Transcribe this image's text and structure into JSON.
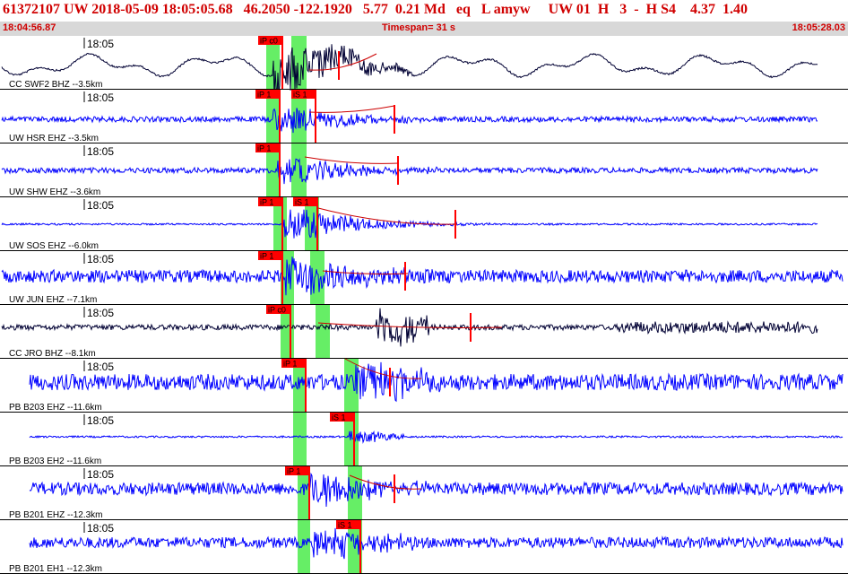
{
  "header": {
    "line1": "61372107 UW 2018-05-09 18:05:05.68   46.2050 -122.1920   5.77  0.21 Md   eq   L amyw     UW 01  H   3  -  H S4    4.37  1.40",
    "start_time": "18:04:56.87",
    "timespan": "Timespan=  31 s",
    "end_time": "18:05:28.03"
  },
  "colors": {
    "trace_blue": "#0000ff",
    "trace_dark": "#000033",
    "pick_box": "#ff0000",
    "pick_window": "#66ee66",
    "predicted_curve": "#cc0000",
    "header_text": "#d00000"
  },
  "channels": [
    {
      "label": "CC SWF2 BHZ --3.5km",
      "time_label": "18:05",
      "color": "#000033",
      "picks": [
        {
          "label": "iP c0"
        }
      ]
    },
    {
      "label": "UW HSR EHZ --3.5km",
      "time_label": "18:05",
      "color": "#0000ff",
      "picks": [
        {
          "label": "iP 1"
        },
        {
          "label": "iS 1"
        }
      ]
    },
    {
      "label": "UW SHW EHZ --3.6km",
      "time_label": "18:05",
      "color": "#0000ff",
      "picks": [
        {
          "label": "iP 1"
        }
      ]
    },
    {
      "label": "UW SOS EHZ --6.0km",
      "time_label": "18:05",
      "color": "#0000ff",
      "picks": [
        {
          "label": "iP 1"
        },
        {
          "label": "iS 1"
        }
      ]
    },
    {
      "label": "UW JUN EHZ --7.1km",
      "time_label": "18:05",
      "color": "#0000ff",
      "picks": [
        {
          "label": "iP 1"
        }
      ]
    },
    {
      "label": "CC JRO BHZ --8.1km",
      "time_label": "18:05",
      "color": "#000033",
      "picks": [
        {
          "label": "iP c0"
        }
      ]
    },
    {
      "label": "PB B203 EHZ --11.6km",
      "time_label": "18:05",
      "color": "#0000ff",
      "picks": [
        {
          "label": "iP 1"
        }
      ]
    },
    {
      "label": "PB B203 EH2 --11.6km",
      "time_label": "18:05",
      "color": "#0000ff",
      "picks": [
        {
          "label": "iS 1"
        }
      ]
    },
    {
      "label": "PB B201 EHZ --12.3km",
      "time_label": "18:05",
      "color": "#0000ff",
      "picks": [
        {
          "label": "iP 1"
        }
      ]
    },
    {
      "label": "PB B201 EH1 --12.3km",
      "time_label": "18:05",
      "color": "#0000ff",
      "picks": [
        {
          "label": "iS 1"
        }
      ]
    }
  ]
}
